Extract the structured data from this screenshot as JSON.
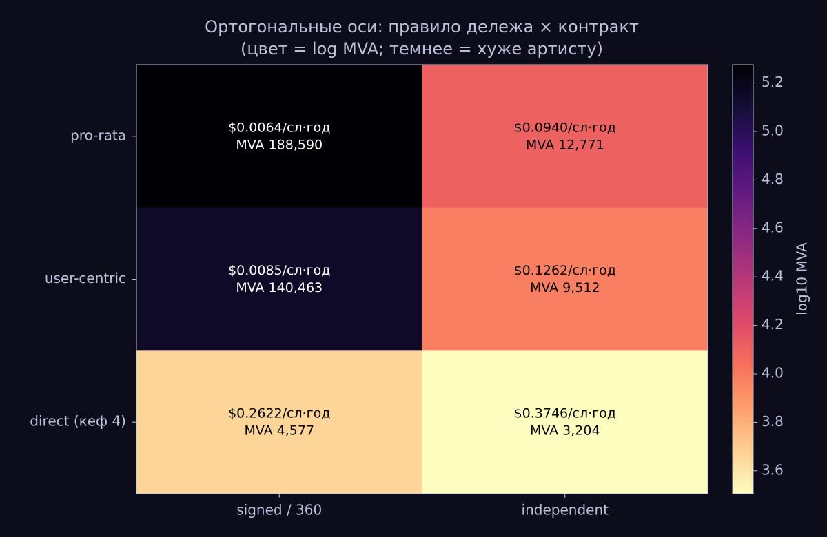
{
  "chart_data": {
    "type": "heatmap",
    "title": "Ортогональные оси: правило дележа × контракт",
    "subtitle": "(цвет = log MVA; темнее = хуже артисту)",
    "x_categories": [
      "signed / 360",
      "independent"
    ],
    "y_categories": [
      "pro-rata",
      "user-centric",
      "direct (кеф 4)"
    ],
    "values": [
      [
        5.2755,
        4.1062
      ],
      [
        5.1475,
        3.9783
      ],
      [
        3.6606,
        3.5057
      ]
    ],
    "cell_labels": [
      [
        [
          "$0.0064/сл·год",
          "MVA 188,590"
        ],
        [
          "$0.0940/сл·год",
          "MVA 12,771"
        ]
      ],
      [
        [
          "$0.0085/сл·год",
          "MVA 140,463"
        ],
        [
          "$0.1262/сл·год",
          "MVA 9,512"
        ]
      ],
      [
        [
          "$0.2622/сл·год",
          "MVA 4,577"
        ],
        [
          "$0.3746/сл·год",
          "MVA 3,204"
        ]
      ]
    ],
    "colormap": "magma_r",
    "colorbar_label": "log10 MVA",
    "clim": [
      3.5057,
      5.2755
    ],
    "cticks": [
      3.6,
      3.8,
      {
        "value": 4,
        "label": "4.0"
      },
      4.2,
      4.4,
      4.6,
      4.8,
      {
        "value": 5,
        "label": "5.0"
      },
      5.2
    ]
  }
}
